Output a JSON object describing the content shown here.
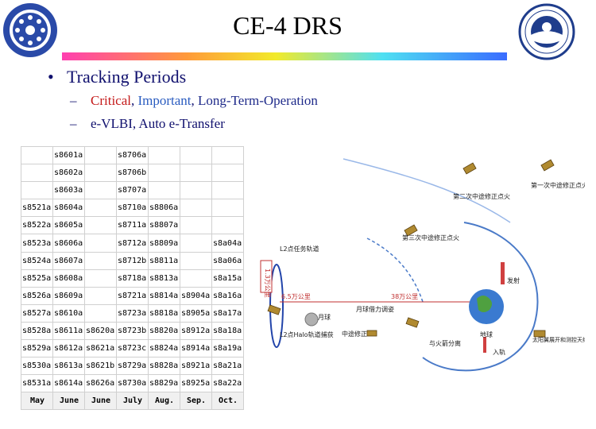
{
  "slide": {
    "title": "CE-4 DRS",
    "bullet": "Tracking Periods",
    "sub1": {
      "critical": "Critical",
      "sep1": ", ",
      "important": "Important",
      "sep2": ", ",
      "lto": "Long-Term-Operation"
    },
    "sub2": "e-VLBI, Auto e-Transfer"
  },
  "table": {
    "rows": [
      [
        "",
        "s8601a",
        "",
        "s8706a",
        "",
        "",
        ""
      ],
      [
        "",
        "s8602a",
        "",
        "s8706b",
        "",
        "",
        ""
      ],
      [
        "",
        "s8603a",
        "",
        "s8707a",
        "",
        "",
        ""
      ],
      [
        "s8521a",
        "s8604a",
        "",
        "s8710a",
        "s8806a",
        "",
        ""
      ],
      [
        "s8522a",
        "s8605a",
        "",
        "s8711a",
        "s8807a",
        "",
        ""
      ],
      [
        "s8523a",
        "s8606a",
        "",
        "s8712a",
        "s8809a",
        "",
        "s8a04a"
      ],
      [
        "s8524a",
        "s8607a",
        "",
        "s8712b",
        "s8811a",
        "",
        "s8a06a"
      ],
      [
        "s8525a",
        "s8608a",
        "",
        "s8718a",
        "s8813a",
        "",
        "s8a15a"
      ],
      [
        "s8526a",
        "s8609a",
        "",
        "s8721a",
        "s8814a",
        "s8904a",
        "s8a16a"
      ],
      [
        "s8527a",
        "s8610a",
        "",
        "s8723a",
        "s8818a",
        "s8905a",
        "s8a17a"
      ],
      [
        "s8528a",
        "s8611a",
        "s8620a",
        "s8723b",
        "s8820a",
        "s8912a",
        "s8a18a"
      ],
      [
        "s8529a",
        "s8612a",
        "s8621a",
        "s8723c",
        "s8824a",
        "s8914a",
        "s8a19a"
      ],
      [
        "s8530a",
        "s8613a",
        "s8621b",
        "s8729a",
        "s8828a",
        "s8921a",
        "s8a21a"
      ],
      [
        "s8531a",
        "s8614a",
        "s8626a",
        "s8730a",
        "s8829a",
        "s8925a",
        "s8a22a"
      ]
    ],
    "months": [
      "May",
      "June",
      "June",
      "July",
      "Aug.",
      "Sep.",
      "Oct."
    ]
  },
  "diagram": {
    "labels": {
      "second_correction": "第二次中途修正点火",
      "first_correction": "第一次中途修正点火",
      "l2_orbit": "L2点任务轨道",
      "third_correction": "第三次中途修正点火",
      "distance_vertical": "1.3万公里",
      "distance_short": "6.5万公里",
      "distance_long": "38万公里",
      "launch": "发射",
      "moon": "月球",
      "lunar_transfer": "月球借力调姿",
      "l2_capture": "L2点Halo轨道捕获",
      "midway_correction": "中途修正",
      "rocket_separation": "与火箭分离",
      "earth": "地球",
      "solar_panels": "太阳翼展开和测控天线建立天线展开",
      "orbit_entry": "入轨"
    }
  },
  "colors": {
    "accent_text": "#10106e",
    "critical": "#c41a1a",
    "important": "#2a5cc0",
    "orbit": "#4a7ac8"
  }
}
